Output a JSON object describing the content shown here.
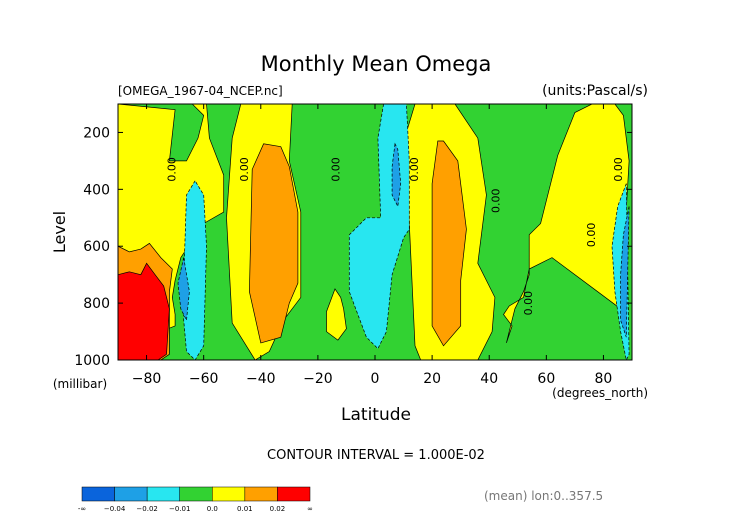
{
  "chart_data": {
    "type": "heatmap",
    "title": "Monthly Mean Omega",
    "file_label": "[OMEGA_1967-04_NCEP.nc]",
    "units_label": "(units:Pascal/s)",
    "xlabel": "Latitude",
    "x_units": "(degrees_north)",
    "ylabel": "Level",
    "y_units": "(millibar)",
    "xlim": [
      -90,
      90
    ],
    "ylim": [
      1000,
      100
    ],
    "x_ticks": [
      -80,
      -60,
      -40,
      -20,
      0,
      20,
      40,
      60,
      80
    ],
    "x_tick_labels": [
      "−80",
      "−60",
      "−40",
      "−20",
      "0",
      "20",
      "40",
      "60",
      "80"
    ],
    "y_ticks": [
      200,
      400,
      600,
      800,
      1000
    ],
    "y_tick_labels": [
      "200",
      "400",
      "600",
      "800",
      "1000"
    ],
    "contour_interval_text": "CONTOUR INTERVAL = 1.000E-02",
    "footer_text": "(mean) lon:0..357.5",
    "contour_labels": [
      {
        "lat": -71,
        "level": 330,
        "text": "0.00"
      },
      {
        "lat": -45.5,
        "level": 330,
        "text": "0.00"
      },
      {
        "lat": -13.5,
        "level": 330,
        "text": "0.00"
      },
      {
        "lat": 14,
        "level": 330,
        "text": "0.00"
      },
      {
        "lat": 42.5,
        "level": 440,
        "text": "0.00"
      },
      {
        "lat": 54,
        "level": 800,
        "text": "0.00"
      },
      {
        "lat": 76,
        "level": 560,
        "text": "0.00"
      },
      {
        "lat": 85.5,
        "level": 330,
        "text": "0.00"
      }
    ],
    "colorbar": {
      "colors": [
        "#0a64dc",
        "#1ea0e6",
        "#28e6f0",
        "#32d232",
        "#ffff00",
        "#ffa000",
        "#ff0000"
      ],
      "tick_labels": [
        "-∞",
        "−0.04",
        "−0.02",
        "−0.01",
        "0.0",
        "0.01",
        "0.02",
        "∞"
      ]
    },
    "background_color": "#32d232",
    "regions": [
      {
        "level": "positive_weak",
        "color": "#ffff00",
        "lat": [
          -90,
          -91,
          -80,
          -77,
          -75,
          -70,
          -70,
          -71,
          -70,
          -68,
          -64,
          -62,
          -60,
          -53,
          -53,
          -58,
          -59,
          -64,
          -60,
          -62,
          -66,
          -72,
          -70,
          -90
        ],
        "lev": [
          100,
          1000,
          1000,
          990,
          900,
          880,
          840,
          780,
          720,
          640,
          580,
          540,
          520,
          480,
          350,
          220,
          100,
          100,
          140,
          220,
          300,
          300,
          120,
          100
        ]
      },
      {
        "level": "positive_weak",
        "color": "#ffff00",
        "lat": [
          -47,
          -50,
          -52,
          -50,
          -42,
          -37,
          -32,
          -26,
          -26,
          -30,
          -29,
          -38,
          -47
        ],
        "lev": [
          100,
          220,
          500,
          870,
          1000,
          970,
          860,
          780,
          480,
          300,
          100,
          100,
          100
        ]
      },
      {
        "level": "positive_weak",
        "color": "#ffff00",
        "lat": [
          -14,
          -17,
          -17,
          -13,
          -10,
          -11,
          -12,
          -14
        ],
        "lev": [
          750,
          830,
          900,
          930,
          890,
          820,
          780,
          750
        ]
      },
      {
        "level": "positive_weak",
        "color": "#ffff00",
        "lat": [
          14,
          11,
          12,
          14,
          16,
          22,
          36,
          41,
          42,
          36,
          39,
          36,
          28,
          25,
          20,
          14
        ],
        "lev": [
          100,
          200,
          520,
          950,
          1000,
          1000,
          1000,
          900,
          780,
          660,
          420,
          220,
          100,
          100,
          100,
          100
        ]
      },
      {
        "level": "positive_weak",
        "color": "#ffff00",
        "lat": [
          46,
          48,
          45,
          47,
          52,
          54,
          62,
          78,
          86,
          89,
          87,
          84,
          80,
          76,
          70,
          64,
          58,
          54,
          54,
          52,
          49,
          47,
          46
        ],
        "lev": [
          940,
          880,
          840,
          810,
          780,
          680,
          640,
          760,
          820,
          300,
          140,
          100,
          100,
          100,
          130,
          280,
          520,
          560,
          700,
          760,
          820,
          900,
          940
        ]
      },
      {
        "level": "positive_moderate",
        "color": "#ffa000",
        "lat": [
          -39,
          -43,
          -44,
          -40,
          -33,
          -30,
          -27,
          -27,
          -30,
          -33,
          -39
        ],
        "lev": [
          240,
          330,
          760,
          940,
          920,
          800,
          730,
          480,
          320,
          250,
          240
        ]
      },
      {
        "level": "positive_moderate",
        "color": "#ffa000",
        "lat": [
          22,
          20,
          20,
          24,
          30,
          30,
          32,
          29,
          24,
          22
        ],
        "lev": [
          230,
          380,
          880,
          950,
          880,
          720,
          540,
          300,
          230,
          230
        ]
      },
      {
        "level": "positive_moderate",
        "color": "#ffa000",
        "lat": [
          -90,
          -86,
          -82,
          -79,
          -75,
          -71,
          -72,
          -72,
          -75,
          -80,
          -83,
          -86,
          -90
        ],
        "lev": [
          600,
          620,
          610,
          590,
          640,
          680,
          760,
          980,
          1000,
          1000,
          1000,
          1000,
          1000
        ]
      },
      {
        "level": "positive_strong",
        "color": "#ff0000",
        "lat": [
          -90,
          -86,
          -82,
          -80,
          -77,
          -74,
          -72,
          -73,
          -76,
          -80,
          -84,
          -88,
          -90
        ],
        "lev": [
          700,
          690,
          700,
          660,
          700,
          740,
          820,
          980,
          1000,
          1000,
          1000,
          1000,
          1000
        ]
      },
      {
        "level": "negative_weak",
        "color": "#28e6f0",
        "lat": [
          -63,
          -66,
          -67,
          -67,
          -66,
          -63,
          -60,
          -59,
          -60,
          -63
        ],
        "lev": [
          370,
          420,
          720,
          860,
          970,
          1000,
          950,
          600,
          420,
          370
        ]
      },
      {
        "level": "negative_weak",
        "color": "#28e6f0",
        "lat": [
          3,
          1,
          2,
          -3,
          -9,
          -9,
          -3,
          1,
          4,
          6,
          10,
          12,
          12,
          11,
          3
        ],
        "lev": [
          100,
          220,
          500,
          500,
          560,
          760,
          920,
          960,
          900,
          700,
          570,
          540,
          300,
          100,
          100
        ]
      },
      {
        "level": "negative_weak",
        "color": "#28e6f0",
        "lat": [
          88,
          85,
          83,
          84,
          86,
          88,
          89,
          88
        ],
        "lev": [
          380,
          460,
          600,
          760,
          900,
          1000,
          980,
          380
        ]
      },
      {
        "level": "negative_moderate",
        "color": "#1ea0e6",
        "lat": [
          -67,
          -69,
          -68,
          -66,
          -65,
          -67
        ],
        "lev": [
          640,
          730,
          820,
          860,
          760,
          640
        ]
      },
      {
        "level": "negative_moderate",
        "color": "#1ea0e6",
        "lat": [
          7,
          6,
          6,
          8,
          9,
          8,
          7
        ],
        "lev": [
          240,
          320,
          420,
          460,
          380,
          260,
          240
        ]
      },
      {
        "level": "negative_moderate",
        "color": "#1ea0e6",
        "lat": [
          89,
          87,
          86,
          86,
          88,
          89
        ],
        "lev": [
          460,
          560,
          700,
          860,
          920,
          460
        ]
      }
    ],
    "negative_values_dashed": true
  }
}
